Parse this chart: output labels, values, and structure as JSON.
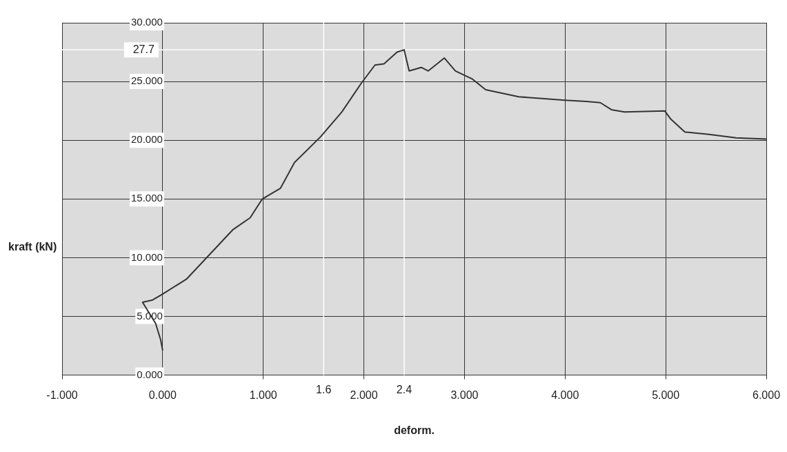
{
  "chart_data": {
    "type": "line",
    "xlabel": "deform.",
    "ylabel": "kraft (kN)",
    "xlim": [
      -1,
      6
    ],
    "xticks": [
      {
        "value": -1,
        "label": "-1.000"
      },
      {
        "value": 0,
        "label": "0.000"
      },
      {
        "value": 1,
        "label": "1.000"
      },
      {
        "value": 2,
        "label": "2.000"
      },
      {
        "value": 3,
        "label": "3.000"
      },
      {
        "value": 4,
        "label": "4.000"
      },
      {
        "value": 5,
        "label": "5.000"
      },
      {
        "value": 6,
        "label": "6.000"
      }
    ],
    "ylim": [
      0,
      30
    ],
    "yticks": [
      {
        "value": 0,
        "label": "0.000"
      },
      {
        "value": 5,
        "label": "5.000"
      },
      {
        "value": 10,
        "label": "10.000"
      },
      {
        "value": 15,
        "label": "15.000"
      },
      {
        "value": 20,
        "label": "20.000"
      },
      {
        "value": 25,
        "label": "25.000"
      },
      {
        "value": 30,
        "label": "30.000"
      }
    ],
    "grid": true,
    "legend": false,
    "marker": "none",
    "line_style": "solid",
    "series": [
      {
        "color": "#333333",
        "x": [
          0.0,
          -0.02,
          -0.07,
          -0.2,
          -0.1,
          0.0,
          0.24,
          0.47,
          0.7,
          0.87,
          0.99,
          1.17,
          1.31,
          1.57,
          1.78,
          1.97,
          2.11,
          2.2,
          2.33,
          2.4,
          2.45,
          2.57,
          2.64,
          2.8,
          2.91,
          3.08,
          3.21,
          3.54,
          4.0,
          4.21,
          4.35,
          4.46,
          4.59,
          4.99,
          5.05,
          5.19,
          5.43,
          5.7,
          6.0
        ],
        "values": [
          2.1,
          3.0,
          4.4,
          6.2,
          6.4,
          6.9,
          8.2,
          10.3,
          12.4,
          13.4,
          15.0,
          15.9,
          18.1,
          20.3,
          22.4,
          24.8,
          26.4,
          26.5,
          27.5,
          27.7,
          25.9,
          26.2,
          25.9,
          27.0,
          25.9,
          25.2,
          24.3,
          23.7,
          23.4,
          23.3,
          23.2,
          22.6,
          22.4,
          22.5,
          21.8,
          20.7,
          20.5,
          20.2,
          20.1
        ]
      }
    ],
    "ref_lines": [
      {
        "axis": "y",
        "value": 27.7,
        "label": "27.7",
        "color": "#ffffff"
      },
      {
        "axis": "x",
        "value": 2.4,
        "label": "2.4",
        "color": "#ffffff"
      },
      {
        "axis": "x",
        "value": 1.6,
        "label": "1.6",
        "color": "#ffffff"
      }
    ]
  }
}
